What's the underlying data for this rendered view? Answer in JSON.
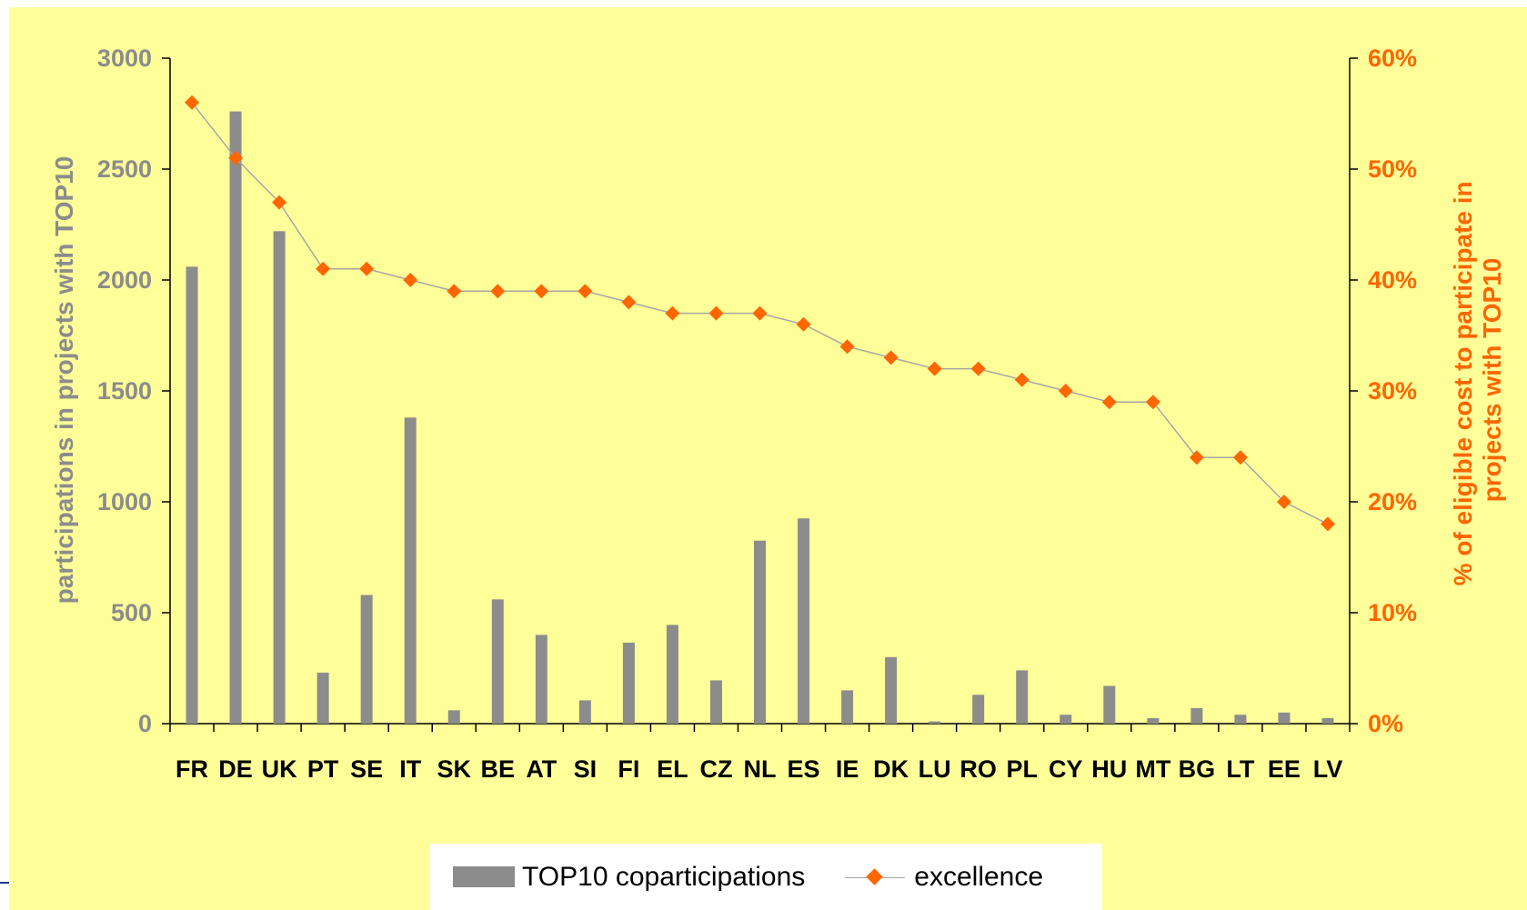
{
  "chart_data": {
    "type": "bar",
    "categories": [
      "FR",
      "DE",
      "UK",
      "PT",
      "SE",
      "IT",
      "SK",
      "BE",
      "AT",
      "SI",
      "FI",
      "EL",
      "CZ",
      "NL",
      "ES",
      "IE",
      "DK",
      "LU",
      "RO",
      "PL",
      "CY",
      "HU",
      "MT",
      "BG",
      "LT",
      "EE",
      "LV"
    ],
    "series": [
      {
        "name": "TOP10 coparticipations",
        "type": "bar",
        "axis": "left",
        "color": "#8c8c8c",
        "values": [
          2060,
          2760,
          2220,
          230,
          580,
          1380,
          60,
          560,
          400,
          105,
          365,
          445,
          195,
          825,
          925,
          150,
          300,
          10,
          130,
          240,
          40,
          170,
          25,
          70,
          40,
          50,
          25
        ]
      },
      {
        "name": "excellence",
        "type": "line",
        "axis": "right",
        "marker": "diamond",
        "color": "#ff6600",
        "line_color": "#a6a6a6",
        "values": [
          0.56,
          0.51,
          0.47,
          0.41,
          0.41,
          0.4,
          0.39,
          0.39,
          0.39,
          0.39,
          0.38,
          0.37,
          0.37,
          0.37,
          0.36,
          0.34,
          0.33,
          0.32,
          0.32,
          0.31,
          0.3,
          0.29,
          0.29,
          0.24,
          0.24,
          0.2,
          0.18
        ]
      }
    ],
    "ylabel": "participations in  projects with TOP10",
    "ylabel_right_lines": [
      "% of eligible cost to  participate in",
      "projects with TOP10"
    ],
    "ylim": [
      0,
      3000
    ],
    "y_ticks": [
      "0",
      "500",
      "1000",
      "1500",
      "2000",
      "2500",
      "3000"
    ],
    "y2lim": [
      0,
      0.6
    ],
    "y2_ticks": [
      "0%",
      "10%",
      "20%",
      "30%",
      "40%",
      "50%",
      "60%"
    ],
    "grid": false,
    "legend_position": "bottom"
  }
}
